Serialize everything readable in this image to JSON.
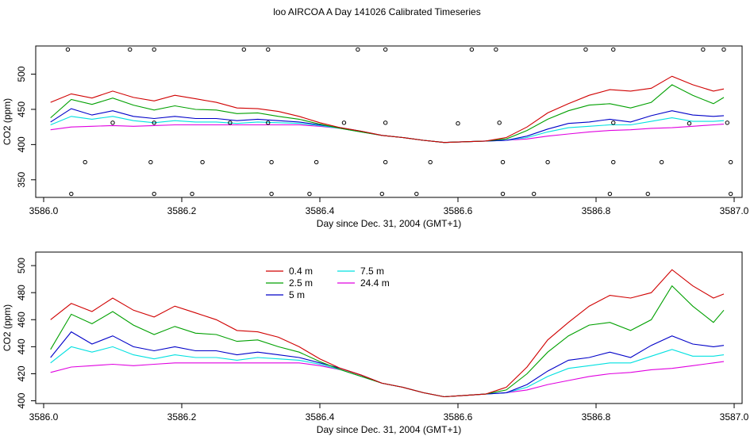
{
  "title": "loo AIRCOA A  Day 141026  Calibrated Timeseries",
  "colors": {
    "0.4 m": "#d00000",
    "2.5 m": "#00a000",
    "5 m": "#0000c8",
    "7.5 m": "#00e0e0",
    "24.4 m": "#e000e0"
  },
  "chart_data": [
    {
      "type": "line",
      "xlabel": "Day since Dec. 31, 2004 (GMT+1)",
      "ylabel": "CO2 (ppm)",
      "xlim": [
        3586.0,
        3587.0
      ],
      "ylim": [
        325,
        540
      ],
      "xticks": [
        "3586.0",
        "3586.2",
        "3586.4",
        "3586.6",
        "3586.8",
        "3587.0"
      ],
      "xtick_values": [
        3586.0,
        3586.2,
        3586.4,
        3586.6,
        3586.8,
        3587.0
      ],
      "yticks": [
        "350",
        "400",
        "450",
        "500"
      ],
      "ytick_values": [
        350,
        400,
        450,
        500
      ],
      "x": [
        3586.01,
        3586.04,
        3586.07,
        3586.1,
        3586.13,
        3586.16,
        3586.19,
        3586.22,
        3586.25,
        3586.28,
        3586.31,
        3586.34,
        3586.37,
        3586.4,
        3586.43,
        3586.46,
        3586.49,
        3586.52,
        3586.55,
        3586.58,
        3586.61,
        3586.64,
        3586.67,
        3586.7,
        3586.73,
        3586.76,
        3586.79,
        3586.82,
        3586.85,
        3586.88,
        3586.91,
        3586.94,
        3586.97,
        3586.985
      ],
      "series": [
        {
          "name": "0.4 m",
          "values": [
            460,
            472,
            466,
            476,
            467,
            462,
            470,
            465,
            460,
            452,
            451,
            447,
            440,
            431,
            424,
            419,
            413,
            410,
            406,
            403,
            404,
            405,
            410,
            425,
            445,
            458,
            470,
            478,
            476,
            480,
            497,
            485,
            476,
            479
          ]
        },
        {
          "name": "2.5 m",
          "values": [
            438,
            464,
            457,
            466,
            456,
            449,
            455,
            450,
            449,
            444,
            445,
            440,
            436,
            429,
            423,
            418,
            413,
            410,
            406,
            403,
            404,
            405,
            408,
            420,
            436,
            448,
            456,
            458,
            452,
            460,
            485,
            470,
            458,
            467
          ]
        },
        {
          "name": "5 m",
          "values": [
            432,
            451,
            442,
            448,
            440,
            437,
            440,
            437,
            437,
            434,
            436,
            434,
            432,
            428,
            424,
            419,
            413,
            410,
            406,
            403,
            404,
            405,
            406,
            412,
            422,
            430,
            432,
            436,
            432,
            441,
            448,
            442,
            440,
            441
          ]
        },
        {
          "name": "7.5 m",
          "values": [
            428,
            440,
            436,
            440,
            434,
            431,
            434,
            432,
            432,
            430,
            432,
            431,
            430,
            427,
            423,
            418,
            413,
            410,
            406,
            403,
            404,
            405,
            406,
            410,
            418,
            424,
            426,
            428,
            428,
            433,
            438,
            433,
            433,
            434
          ]
        },
        {
          "name": "24.4 m",
          "values": [
            421,
            425,
            426,
            427,
            426,
            427,
            428,
            428,
            428,
            428,
            428,
            428,
            428,
            426,
            423,
            418,
            413,
            410,
            406,
            403,
            404,
            405,
            406,
            408,
            412,
            415,
            418,
            420,
            421,
            423,
            424,
            426,
            428,
            429
          ]
        }
      ],
      "flags": {
        "x": [
          3586.035,
          3586.125,
          3586.16,
          3586.29,
          3586.325,
          3586.455,
          3586.495,
          3586.62,
          3586.655,
          3586.785,
          3586.825,
          3586.955,
          3586.985,
          3586.06,
          3586.155,
          3586.23,
          3586.33,
          3586.395,
          3586.495,
          3586.56,
          3586.665,
          3586.73,
          3586.825,
          3586.895,
          3586.995,
          3586.1,
          3586.16,
          3586.27,
          3586.325,
          3586.435,
          3586.495,
          3586.6,
          3586.66,
          3586.825,
          3586.935,
          3586.99,
          3586.04,
          3586.16,
          3586.215,
          3586.33,
          3586.385,
          3586.49,
          3586.54,
          3586.665,
          3586.71,
          3586.82,
          3586.875,
          3586.995
        ],
        "y": [
          535,
          535,
          535,
          535,
          535,
          535,
          535,
          535,
          535,
          535,
          535,
          535,
          535,
          375,
          375,
          375,
          375,
          375,
          375,
          375,
          375,
          375,
          375,
          375,
          375,
          431,
          431,
          431,
          431,
          431,
          431,
          430,
          431,
          431,
          430,
          431,
          330,
          330,
          330,
          330,
          330,
          330,
          330,
          330,
          330,
          330,
          330,
          330
        ]
      }
    },
    {
      "type": "line",
      "xlabel": "Day since Dec. 31, 2004 (GMT+1)",
      "ylabel": "CO2 (ppm)",
      "xlim": [
        3586.0,
        3587.0
      ],
      "ylim": [
        398,
        510
      ],
      "xticks": [
        "3586.0",
        "3586.2",
        "3586.4",
        "3586.6",
        "3586.8",
        "3587.0"
      ],
      "xtick_values": [
        3586.0,
        3586.2,
        3586.4,
        3586.6,
        3586.8,
        3587.0
      ],
      "yticks": [
        "400",
        "420",
        "440",
        "460",
        "480",
        "500"
      ],
      "ytick_values": [
        400,
        420,
        440,
        460,
        480,
        500
      ],
      "legend": "top-left",
      "x": [
        3586.01,
        3586.04,
        3586.07,
        3586.1,
        3586.13,
        3586.16,
        3586.19,
        3586.22,
        3586.25,
        3586.28,
        3586.31,
        3586.34,
        3586.37,
        3586.4,
        3586.43,
        3586.46,
        3586.49,
        3586.52,
        3586.55,
        3586.58,
        3586.61,
        3586.64,
        3586.67,
        3586.7,
        3586.73,
        3586.76,
        3586.79,
        3586.82,
        3586.85,
        3586.88,
        3586.91,
        3586.94,
        3586.97,
        3586.985
      ],
      "series": [
        {
          "name": "0.4 m",
          "values": [
            460,
            472,
            466,
            476,
            467,
            462,
            470,
            465,
            460,
            452,
            451,
            447,
            440,
            431,
            424,
            419,
            413,
            410,
            406,
            403,
            404,
            405,
            410,
            425,
            445,
            458,
            470,
            478,
            476,
            480,
            497,
            485,
            476,
            479
          ]
        },
        {
          "name": "2.5 m",
          "values": [
            438,
            464,
            457,
            466,
            456,
            449,
            455,
            450,
            449,
            444,
            445,
            440,
            436,
            429,
            423,
            418,
            413,
            410,
            406,
            403,
            404,
            405,
            408,
            420,
            436,
            448,
            456,
            458,
            452,
            460,
            485,
            470,
            458,
            467
          ]
        },
        {
          "name": "5 m",
          "values": [
            432,
            451,
            442,
            448,
            440,
            437,
            440,
            437,
            437,
            434,
            436,
            434,
            432,
            428,
            424,
            419,
            413,
            410,
            406,
            403,
            404,
            405,
            406,
            412,
            422,
            430,
            432,
            436,
            432,
            441,
            448,
            442,
            440,
            441
          ]
        },
        {
          "name": "7.5 m",
          "values": [
            428,
            440,
            436,
            440,
            434,
            431,
            434,
            432,
            432,
            430,
            432,
            431,
            430,
            427,
            423,
            418,
            413,
            410,
            406,
            403,
            404,
            405,
            406,
            410,
            418,
            424,
            426,
            428,
            428,
            433,
            438,
            433,
            433,
            434
          ]
        },
        {
          "name": "24.4 m",
          "values": [
            421,
            425,
            426,
            427,
            426,
            427,
            428,
            428,
            428,
            428,
            428,
            428,
            428,
            426,
            423,
            418,
            413,
            410,
            406,
            403,
            404,
            405,
            406,
            408,
            412,
            415,
            418,
            420,
            421,
            423,
            424,
            426,
            428,
            429
          ]
        }
      ]
    }
  ]
}
